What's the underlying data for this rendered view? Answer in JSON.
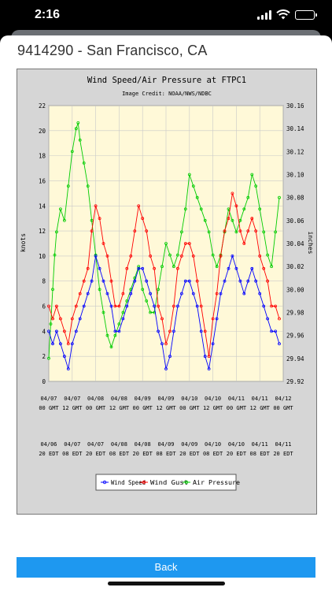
{
  "status_bar": {
    "time": "2:16"
  },
  "station": {
    "title": "9414290 - San Francisco, CA"
  },
  "back_button": {
    "label": "Back"
  },
  "chart_data": {
    "type": "line",
    "title": "Wind Speed/Air Pressure at FTPC1",
    "subtitle": "Image Credit: NOAA/NWS/NDBC",
    "ylabel": "knots",
    "y2label": "inches",
    "ylim": [
      0,
      22
    ],
    "y2lim": [
      29.92,
      30.16
    ],
    "yticks": [
      "0",
      "2",
      "4",
      "6",
      "8",
      "10",
      "12",
      "14",
      "16",
      "18",
      "20",
      "22"
    ],
    "y2ticks": [
      "29.92",
      "29.94",
      "29.96",
      "29.98",
      "30.00",
      "30.02",
      "30.04",
      "30.06",
      "30.08",
      "30.10",
      "30.12",
      "30.14",
      "30.16"
    ],
    "xlim": [
      0,
      120
    ],
    "xticks": [
      {
        "x": 0,
        "gmt": [
          "04/07",
          "00 GMT"
        ],
        "edt": [
          "04/06",
          "20 EDT"
        ]
      },
      {
        "x": 12,
        "gmt": [
          "04/07",
          "12 GMT"
        ],
        "edt": [
          "04/07",
          "08 EDT"
        ]
      },
      {
        "x": 24,
        "gmt": [
          "04/08",
          "00 GMT"
        ],
        "edt": [
          "04/07",
          "20 EDT"
        ]
      },
      {
        "x": 36,
        "gmt": [
          "04/08",
          "12 GMT"
        ],
        "edt": [
          "04/08",
          "08 EDT"
        ]
      },
      {
        "x": 48,
        "gmt": [
          "04/09",
          "00 GMT"
        ],
        "edt": [
          "04/08",
          "20 EDT"
        ]
      },
      {
        "x": 60,
        "gmt": [
          "04/09",
          "12 GMT"
        ],
        "edt": [
          "04/09",
          "08 EDT"
        ]
      },
      {
        "x": 72,
        "gmt": [
          "04/10",
          "00 GMT"
        ],
        "edt": [
          "04/09",
          "20 EDT"
        ]
      },
      {
        "x": 84,
        "gmt": [
          "04/10",
          "12 GMT"
        ],
        "edt": [
          "04/10",
          "08 EDT"
        ]
      },
      {
        "x": 96,
        "gmt": [
          "04/11",
          "00 GMT"
        ],
        "edt": [
          "04/10",
          "20 EDT"
        ]
      },
      {
        "x": 108,
        "gmt": [
          "04/11",
          "12 GMT"
        ],
        "edt": [
          "04/11",
          "08 EDT"
        ]
      },
      {
        "x": 120,
        "gmt": [
          "04/12",
          "00 GMT"
        ],
        "edt": [
          "04/11",
          "20 EDT"
        ]
      }
    ],
    "legend_position": "bottom",
    "series": [
      {
        "name": "Wind Speed",
        "color": "#0000ff",
        "axis": "left",
        "x": [
          0,
          2,
          4,
          6,
          8,
          10,
          12,
          14,
          16,
          18,
          20,
          22,
          24,
          26,
          28,
          30,
          32,
          34,
          36,
          38,
          40,
          42,
          44,
          46,
          48,
          50,
          52,
          54,
          56,
          58,
          60,
          62,
          64,
          66,
          68,
          70,
          72,
          74,
          76,
          78,
          80,
          82,
          84,
          86,
          88,
          90,
          92,
          94,
          96,
          98,
          100,
          102,
          104,
          106,
          108,
          110,
          112,
          114,
          116,
          118
        ],
        "values": [
          4,
          3,
          4,
          3,
          2,
          1,
          3,
          4,
          5,
          6,
          7,
          8,
          10,
          9,
          8,
          7,
          6,
          4,
          4,
          5,
          6,
          7,
          8,
          9,
          9,
          8,
          7,
          6,
          4,
          3,
          1,
          2,
          4,
          6,
          7,
          8,
          8,
          7,
          6,
          4,
          2,
          1,
          3,
          5,
          7,
          8,
          9,
          10,
          9,
          8,
          7,
          8,
          9,
          8,
          7,
          6,
          5,
          4,
          4,
          3
        ]
      },
      {
        "name": "Wind Gust",
        "color": "#ff0000",
        "axis": "left",
        "x": [
          0,
          2,
          4,
          6,
          8,
          10,
          12,
          14,
          16,
          18,
          20,
          22,
          24,
          26,
          28,
          30,
          32,
          34,
          36,
          38,
          40,
          42,
          44,
          46,
          48,
          50,
          52,
          54,
          56,
          58,
          60,
          62,
          64,
          66,
          68,
          70,
          72,
          74,
          76,
          78,
          80,
          82,
          84,
          86,
          88,
          90,
          92,
          94,
          96,
          98,
          100,
          102,
          104,
          106,
          108,
          110,
          112,
          114,
          116,
          118
        ],
        "values": [
          6,
          5,
          6,
          5,
          4,
          3,
          5,
          6,
          7,
          8,
          9,
          12,
          14,
          13,
          11,
          10,
          8,
          6,
          6,
          7,
          9,
          10,
          12,
          14,
          13,
          12,
          10,
          9,
          6,
          5,
          3,
          4,
          6,
          9,
          10,
          11,
          11,
          10,
          8,
          6,
          4,
          2,
          5,
          7,
          10,
          12,
          13,
          15,
          14,
          12,
          11,
          12,
          13,
          12,
          10,
          9,
          8,
          6,
          6,
          5
        ]
      },
      {
        "name": "Air Pressure",
        "color": "#00cc00",
        "axis": "right",
        "x": [
          0,
          1,
          2,
          3,
          4,
          6,
          8,
          10,
          12,
          14,
          15,
          16,
          18,
          20,
          22,
          24,
          26,
          28,
          30,
          32,
          34,
          36,
          38,
          40,
          42,
          44,
          46,
          48,
          50,
          52,
          54,
          56,
          58,
          60,
          62,
          64,
          66,
          68,
          70,
          72,
          74,
          76,
          78,
          80,
          82,
          84,
          86,
          88,
          90,
          92,
          94,
          96,
          98,
          100,
          102,
          104,
          106,
          108,
          110,
          112,
          114,
          116,
          118
        ],
        "values": [
          29.94,
          29.97,
          30.0,
          30.03,
          30.05,
          30.07,
          30.06,
          30.09,
          30.12,
          30.14,
          30.145,
          30.13,
          30.11,
          30.09,
          30.06,
          30.03,
          30.0,
          29.98,
          29.96,
          29.95,
          29.96,
          29.97,
          29.98,
          29.99,
          30.0,
          30.01,
          30.02,
          30.0,
          29.99,
          29.98,
          29.98,
          30.0,
          30.02,
          30.04,
          30.03,
          30.02,
          30.03,
          30.05,
          30.07,
          30.1,
          30.09,
          30.08,
          30.07,
          30.06,
          30.05,
          30.03,
          30.02,
          30.03,
          30.05,
          30.07,
          30.06,
          30.05,
          30.06,
          30.07,
          30.08,
          30.1,
          30.09,
          30.07,
          30.05,
          30.03,
          30.02,
          30.05,
          30.08
        ]
      }
    ]
  }
}
